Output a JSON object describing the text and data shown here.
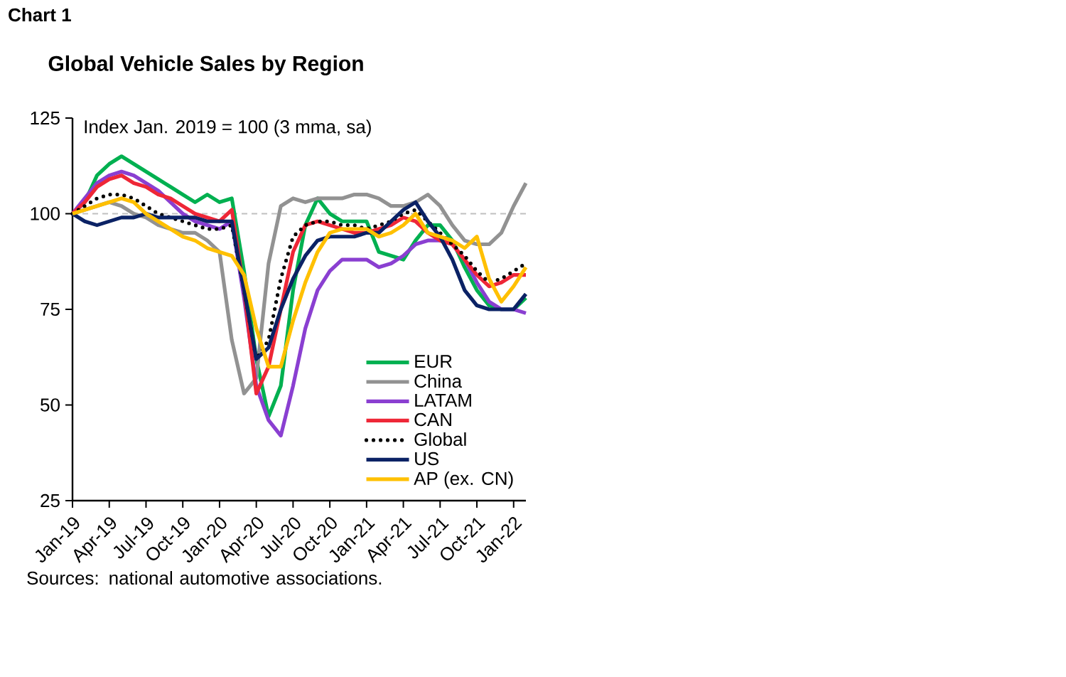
{
  "chart_data": {
    "type": "line",
    "title": "Global Vehicle Sales by Region",
    "ylabel": "Index Jan. 2019 = 100 (3 mma, sa)",
    "annotations": [
      "Chart 1",
      "Sources: national automotive associations."
    ],
    "x": [
      "2019-01",
      "2019-02",
      "2019-03",
      "2019-04",
      "2019-05",
      "2019-06",
      "2019-07",
      "2019-08",
      "2019-09",
      "2019-10",
      "2019-11",
      "2019-12",
      "2020-01",
      "2020-02",
      "2020-03",
      "2020-04",
      "2020-05",
      "2020-06",
      "2020-07",
      "2020-08",
      "2020-09",
      "2020-10",
      "2020-11",
      "2020-12",
      "2021-01",
      "2021-02",
      "2021-03",
      "2021-04",
      "2021-05",
      "2021-06",
      "2021-07",
      "2021-08",
      "2021-09",
      "2021-10",
      "2021-11",
      "2021-12",
      "2022-01",
      "2022-02"
    ],
    "series": [
      {
        "name": "EUR",
        "color": "#00b050",
        "values": [
          100,
          103,
          110,
          113,
          115,
          113,
          111,
          109,
          107,
          105,
          103,
          105,
          103,
          104,
          85,
          62,
          47,
          55,
          80,
          97,
          104,
          100,
          98,
          98,
          98,
          90,
          89,
          88,
          93,
          97,
          97,
          93,
          86,
          80,
          76,
          75,
          75,
          78
        ]
      },
      {
        "name": "China",
        "color": "#929292",
        "values": [
          100,
          101,
          102,
          103,
          102,
          100,
          99,
          97,
          96,
          95,
          95,
          93,
          90,
          67,
          53,
          57,
          87,
          102,
          104,
          103,
          104,
          104,
          104,
          105,
          105,
          104,
          102,
          102,
          103,
          105,
          102,
          97,
          93,
          92,
          92,
          95,
          102,
          108
        ]
      },
      {
        "name": "LATAM",
        "color": "#8a3fd1",
        "values": [
          100,
          104,
          108,
          110,
          111,
          110,
          108,
          106,
          103,
          100,
          98,
          97,
          96,
          98,
          78,
          55,
          46,
          42,
          55,
          70,
          80,
          85,
          88,
          88,
          88,
          86,
          87,
          89,
          92,
          93,
          93,
          92,
          88,
          82,
          77,
          75,
          75,
          74
        ]
      },
      {
        "name": "CAN",
        "color": "#ee2737",
        "values": [
          100,
          103,
          107,
          109,
          110,
          108,
          107,
          105,
          104,
          102,
          100,
          99,
          98,
          101,
          80,
          53,
          60,
          75,
          90,
          97,
          98,
          97,
          96,
          95,
          95,
          96,
          97,
          99,
          98,
          95,
          93,
          92,
          88,
          84,
          81,
          82,
          84,
          84
        ]
      },
      {
        "name": "Global",
        "color": "#000000",
        "line_style": "dotted",
        "values": [
          100,
          102,
          104,
          105,
          105,
          104,
          102,
          100,
          99,
          98,
          97,
          96,
          96,
          97,
          80,
          62,
          67,
          83,
          94,
          97,
          98,
          98,
          97,
          97,
          96,
          97,
          98,
          100,
          101,
          98,
          95,
          92,
          89,
          85,
          82,
          83,
          85,
          87
        ]
      },
      {
        "name": "US",
        "color": "#0b2265",
        "values": [
          100,
          98,
          97,
          98,
          99,
          99,
          100,
          99,
          99,
          99,
          99,
          98,
          98,
          98,
          80,
          62,
          65,
          75,
          83,
          89,
          93,
          94,
          94,
          94,
          95,
          95,
          98,
          101,
          103,
          98,
          94,
          88,
          80,
          76,
          75,
          75,
          75,
          79
        ]
      },
      {
        "name": "AP (ex. CN)",
        "color": "#ffc000",
        "values": [
          100,
          101,
          102,
          103,
          104,
          103,
          100,
          98,
          96,
          94,
          93,
          91,
          90,
          89,
          84,
          70,
          60,
          60,
          72,
          82,
          90,
          95,
          96,
          96,
          96,
          94,
          95,
          97,
          100,
          95,
          94,
          93,
          91,
          94,
          83,
          77,
          81,
          86
        ]
      }
    ],
    "xlim": [
      "2019-01",
      "2022-02"
    ],
    "xticks": [
      {
        "value": "2019-01",
        "label": "Jan-19"
      },
      {
        "value": "2019-04",
        "label": "Apr-19"
      },
      {
        "value": "2019-07",
        "label": "Jul-19"
      },
      {
        "value": "2019-10",
        "label": "Oct-19"
      },
      {
        "value": "2020-01",
        "label": "Jan-20"
      },
      {
        "value": "2020-04",
        "label": "Apr-20"
      },
      {
        "value": "2020-07",
        "label": "Jul-20"
      },
      {
        "value": "2020-10",
        "label": "Oct-20"
      },
      {
        "value": "2021-01",
        "label": "Jan-21"
      },
      {
        "value": "2021-04",
        "label": "Apr-21"
      },
      {
        "value": "2021-07",
        "label": "Jul-21"
      },
      {
        "value": "2021-10",
        "label": "Oct-21"
      },
      {
        "value": "2022-01",
        "label": "Jan-22"
      }
    ],
    "ylim": [
      25,
      125
    ],
    "yticks": [
      25,
      50,
      75,
      100,
      125
    ],
    "ref_lines": [
      {
        "axis": "y",
        "value": 100,
        "color": "#bfbfbf",
        "line_style": "dashed"
      }
    ],
    "legend": "bottom right",
    "grid": false,
    "marker": "none"
  }
}
